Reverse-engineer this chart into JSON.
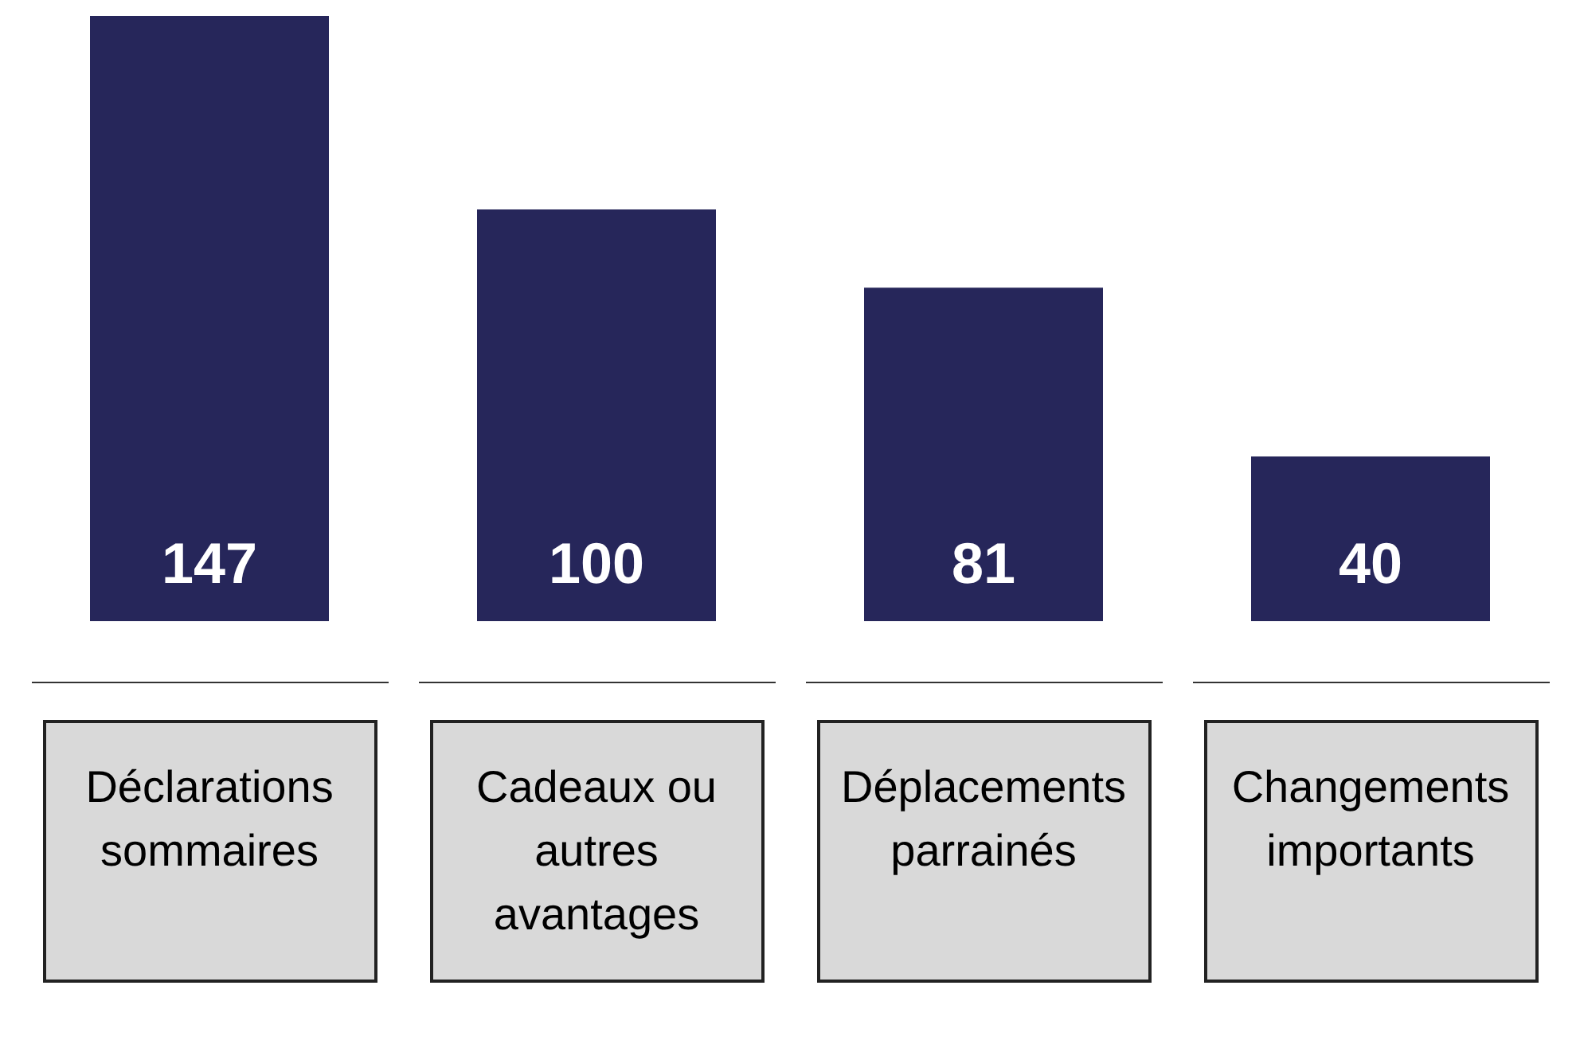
{
  "chart_data": {
    "type": "bar",
    "categories": [
      "Déclarations sommaires",
      "Cadeaux ou autres avantages",
      "Déplacements parrainés",
      "Changements importants"
    ],
    "values": [
      147,
      100,
      81,
      40
    ],
    "color": "#26265a",
    "data_labels": true
  }
}
